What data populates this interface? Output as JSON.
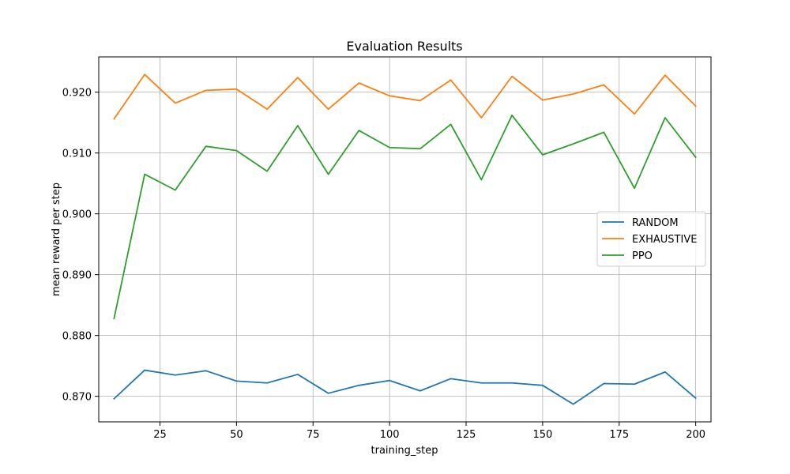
{
  "chart_data": {
    "type": "line",
    "title": "Evaluation Results",
    "xlabel": "training_step",
    "ylabel": "mean reward per step",
    "xlim": [
      5,
      205
    ],
    "ylim": [
      0.8658,
      0.9258
    ],
    "grid": true,
    "legend_position": "center-right",
    "x": [
      10,
      20,
      30,
      40,
      50,
      60,
      70,
      80,
      90,
      100,
      110,
      120,
      130,
      140,
      150,
      160,
      170,
      180,
      190,
      200
    ],
    "x_ticks": [
      25,
      50,
      75,
      100,
      125,
      150,
      175,
      200
    ],
    "y_ticks": [
      0.87,
      0.88,
      0.89,
      0.9,
      0.91,
      0.92
    ],
    "x_tick_labels": [
      "25",
      "50",
      "75",
      "100",
      "125",
      "150",
      "175",
      "200"
    ],
    "y_tick_labels": [
      "0.870",
      "0.880",
      "0.890",
      "0.900",
      "0.910",
      "0.920"
    ],
    "series": [
      {
        "name": "RANDOM",
        "color": "#1f77b4",
        "values": [
          0.8696,
          0.8743,
          0.8735,
          0.8742,
          0.8725,
          0.8722,
          0.8736,
          0.8705,
          0.8718,
          0.8726,
          0.8709,
          0.8729,
          0.8722,
          0.8722,
          0.8718,
          0.8687,
          0.8721,
          0.872,
          0.874,
          0.8697
        ]
      },
      {
        "name": "EXHAUSTIVE",
        "color": "#ff7f0e",
        "values": [
          0.9156,
          0.9229,
          0.9182,
          0.9203,
          0.9205,
          0.9172,
          0.9224,
          0.9172,
          0.9215,
          0.9194,
          0.9186,
          0.922,
          0.9158,
          0.9226,
          0.9187,
          0.9197,
          0.9212,
          0.9164,
          0.9228,
          0.9177
        ]
      },
      {
        "name": "PPO",
        "color": "#2ca02c",
        "values": [
          0.8828,
          0.9065,
          0.9039,
          0.9111,
          0.9104,
          0.907,
          0.9145,
          0.9065,
          0.9137,
          0.9109,
          0.9107,
          0.9147,
          0.9056,
          0.9162,
          0.9097,
          0.9115,
          0.9134,
          0.9042,
          0.9158,
          0.9093
        ]
      }
    ]
  }
}
